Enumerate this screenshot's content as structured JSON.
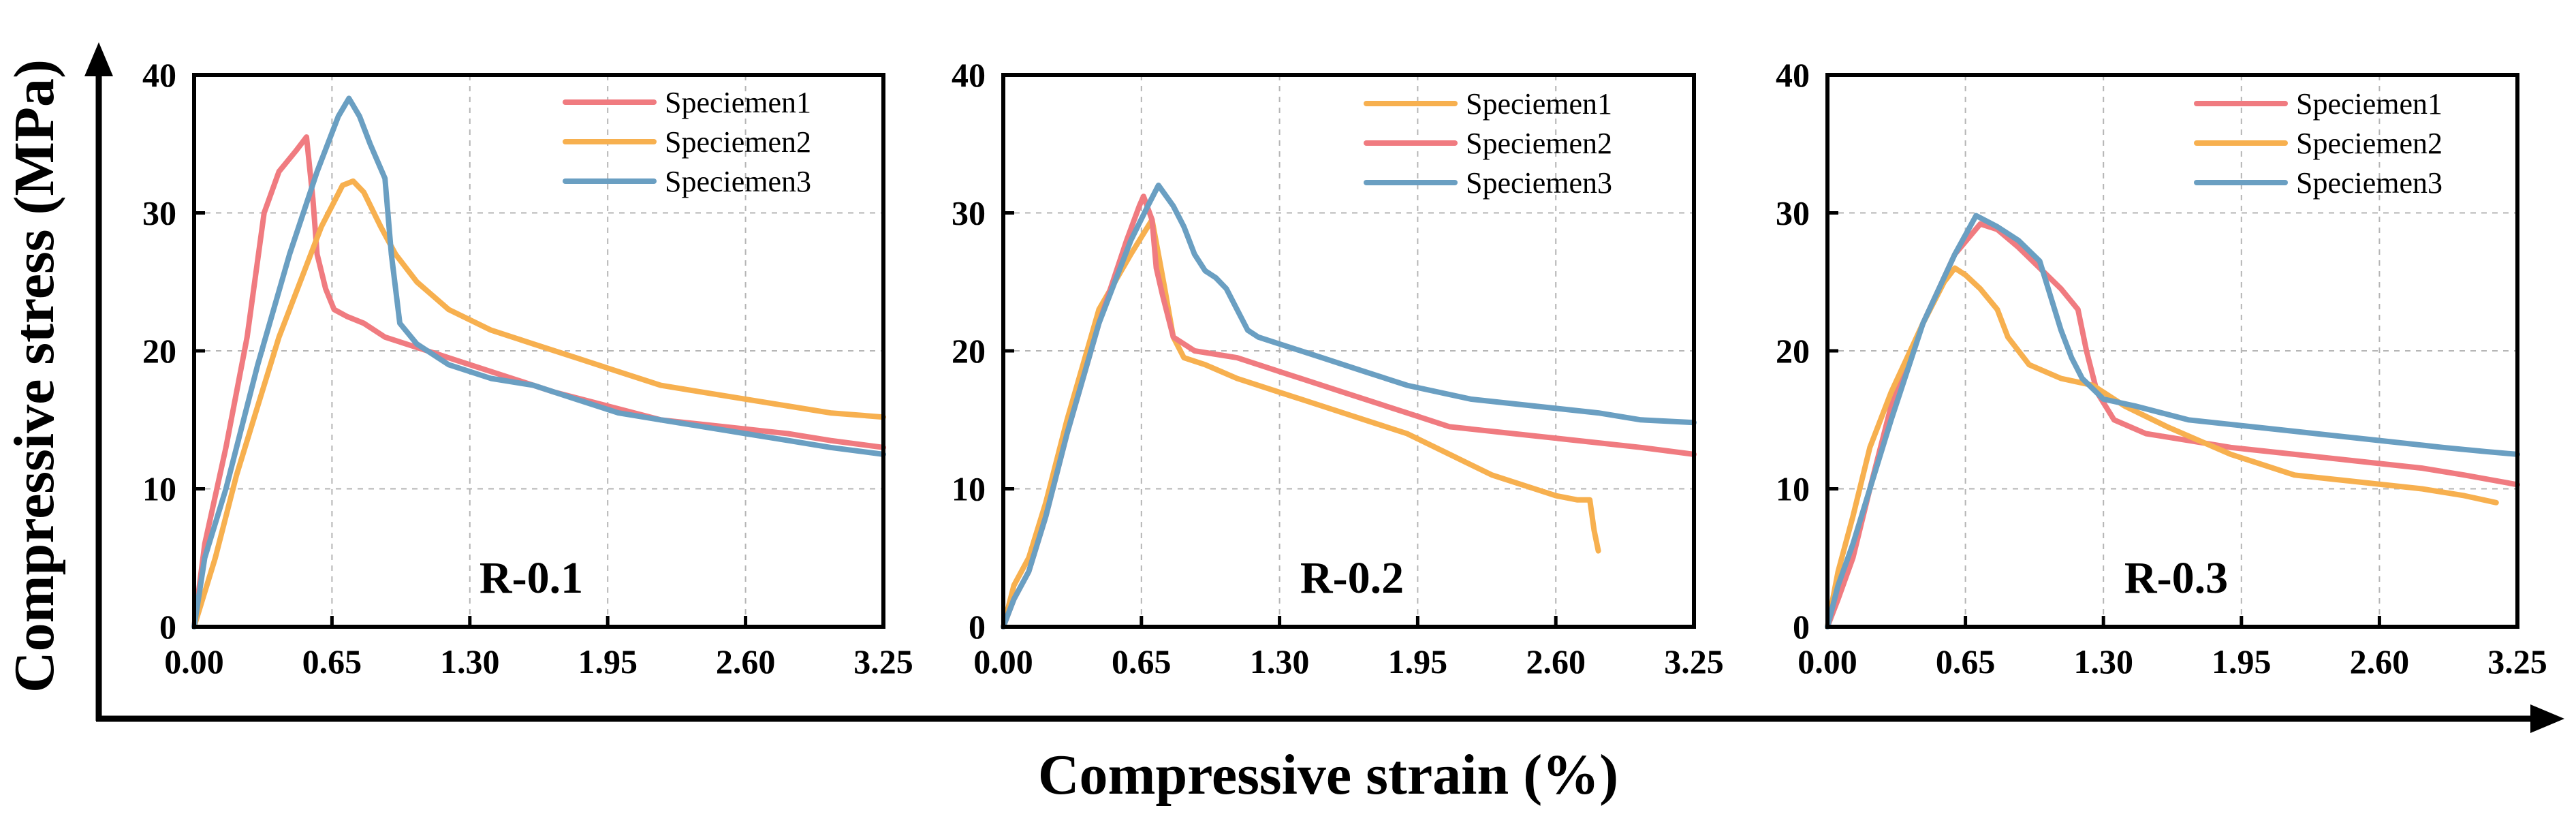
{
  "figure": {
    "xlabel": "Compressive strain (%)",
    "ylabel": "Compressive stress (MPa)",
    "colors": {
      "red": "#F07B80",
      "orange": "#F7B04F",
      "blue": "#6A9FC2"
    }
  },
  "chart_data": [
    {
      "type": "line",
      "panel_label": "R-0.1",
      "xlim": [
        0,
        3.25
      ],
      "ylim": [
        0,
        40
      ],
      "xticks": [
        "0.00",
        "0.65",
        "1.30",
        "1.95",
        "2.60",
        "3.25"
      ],
      "yticks": [
        "0",
        "10",
        "20",
        "30",
        "40"
      ],
      "grid": true,
      "legend_position": "top-right",
      "series": [
        {
          "name": "Speciemen1",
          "color": "#F07B80",
          "x": [
            0,
            0.05,
            0.15,
            0.25,
            0.33,
            0.4,
            0.48,
            0.53,
            0.56,
            0.58,
            0.62,
            0.66,
            0.72,
            0.8,
            0.9,
            1.0,
            1.1,
            1.3,
            1.5,
            1.7,
            1.95,
            2.2,
            2.5,
            2.8,
            3.0,
            3.25
          ],
          "y": [
            0,
            6,
            13,
            21,
            30,
            33,
            34.5,
            35.5,
            31,
            27,
            24.5,
            23,
            22.5,
            22,
            21,
            20.5,
            20,
            19,
            18,
            17,
            16,
            15,
            14.5,
            14,
            13.5,
            13
          ]
        },
        {
          "name": "Speciemen2",
          "color": "#F7B04F",
          "x": [
            0,
            0.1,
            0.2,
            0.3,
            0.4,
            0.5,
            0.6,
            0.7,
            0.75,
            0.8,
            0.88,
            0.95,
            1.05,
            1.2,
            1.4,
            1.6,
            1.8,
            2.0,
            2.2,
            2.4,
            2.6,
            2.8,
            3.0,
            3.25
          ],
          "y": [
            0,
            5,
            11,
            16,
            21,
            25,
            29,
            32,
            32.3,
            31.5,
            29,
            27,
            25,
            23,
            21.5,
            20.5,
            19.5,
            18.5,
            17.5,
            17,
            16.5,
            16,
            15.5,
            15.2
          ]
        },
        {
          "name": "Speciemen3",
          "color": "#6A9FC2",
          "x": [
            0,
            0.05,
            0.15,
            0.3,
            0.45,
            0.58,
            0.68,
            0.73,
            0.78,
            0.83,
            0.9,
            0.93,
            0.97,
            1.05,
            1.2,
            1.4,
            1.6,
            1.8,
            2.0,
            2.2,
            2.4,
            2.6,
            2.8,
            3.0,
            3.25
          ],
          "y": [
            0,
            5,
            10,
            19,
            27,
            33,
            37,
            38.3,
            37,
            35,
            32.5,
            27,
            22,
            20.5,
            19,
            18,
            17.5,
            16.5,
            15.5,
            15,
            14.5,
            14,
            13.5,
            13,
            12.5
          ]
        }
      ]
    },
    {
      "type": "line",
      "panel_label": "R-0.2",
      "xlim": [
        0,
        3.25
      ],
      "ylim": [
        0,
        40
      ],
      "xticks": [
        "0.00",
        "0.65",
        "1.30",
        "1.95",
        "2.60",
        "3.25"
      ],
      "yticks": [
        "0",
        "10",
        "20",
        "30",
        "40"
      ],
      "grid": true,
      "legend_position": "top-right",
      "series": [
        {
          "name": "Speciemen1",
          "color": "#F7B04F",
          "x": [
            0,
            0.05,
            0.12,
            0.2,
            0.3,
            0.45,
            0.6,
            0.7,
            0.73,
            0.76,
            0.8,
            0.85,
            0.95,
            1.1,
            1.3,
            1.5,
            1.7,
            1.9,
            2.1,
            2.3,
            2.5,
            2.6,
            2.7,
            2.76,
            2.78,
            2.8
          ],
          "y": [
            0,
            3,
            5,
            9,
            15,
            23,
            27,
            29.5,
            27,
            24.5,
            21,
            19.5,
            19,
            18,
            17,
            16,
            15,
            14,
            12.5,
            11,
            10,
            9.5,
            9.2,
            9.2,
            7,
            5.5
          ]
        },
        {
          "name": "Speciemen2",
          "color": "#F07B80",
          "x": [
            0,
            0.05,
            0.12,
            0.2,
            0.3,
            0.45,
            0.58,
            0.64,
            0.66,
            0.7,
            0.72,
            0.75,
            0.8,
            0.9,
            1.1,
            1.3,
            1.6,
            1.9,
            2.1,
            2.4,
            2.7,
            3.0,
            3.25
          ],
          "y": [
            0,
            2,
            4,
            8,
            14,
            22,
            28,
            30.5,
            31.2,
            29.5,
            26,
            24,
            21,
            20,
            19.5,
            18.5,
            17,
            15.5,
            14.5,
            14,
            13.5,
            13,
            12.5
          ]
        },
        {
          "name": "Speciemen3",
          "color": "#6A9FC2",
          "x": [
            0,
            0.05,
            0.12,
            0.2,
            0.3,
            0.45,
            0.6,
            0.68,
            0.73,
            0.8,
            0.85,
            0.9,
            0.95,
            1.0,
            1.05,
            1.1,
            1.15,
            1.2,
            1.3,
            1.5,
            1.7,
            1.9,
            2.2,
            2.5,
            2.8,
            3.0,
            3.25
          ],
          "y": [
            0,
            2,
            4,
            8,
            14,
            22,
            28,
            30.5,
            32,
            30.5,
            29,
            27,
            25.8,
            25.3,
            24.5,
            23,
            21.5,
            21,
            20.5,
            19.5,
            18.5,
            17.5,
            16.5,
            16,
            15.5,
            15,
            14.8
          ]
        }
      ]
    },
    {
      "type": "line",
      "panel_label": "R-0.3",
      "xlim": [
        0,
        3.25
      ],
      "ylim": [
        0,
        40
      ],
      "xticks": [
        "0.00",
        "0.65",
        "1.30",
        "1.95",
        "2.60",
        "3.25"
      ],
      "yticks": [
        "0",
        "10",
        "20",
        "30",
        "40"
      ],
      "grid": true,
      "legend_position": "top-right",
      "series": [
        {
          "name": "Speciemen1",
          "color": "#F07B80",
          "x": [
            0,
            0.05,
            0.12,
            0.2,
            0.3,
            0.45,
            0.6,
            0.72,
            0.8,
            0.9,
            1.0,
            1.1,
            1.18,
            1.22,
            1.27,
            1.35,
            1.5,
            1.7,
            1.9,
            2.2,
            2.5,
            2.8,
            3.0,
            3.25
          ],
          "y": [
            0,
            2,
            5,
            10,
            16,
            22,
            27,
            29.2,
            28.8,
            27.5,
            26,
            24.5,
            23,
            20,
            17,
            15,
            14,
            13.5,
            13,
            12.5,
            12,
            11.5,
            11,
            10.3
          ]
        },
        {
          "name": "Speciemen2",
          "color": "#F7B04F",
          "x": [
            0,
            0.05,
            0.12,
            0.2,
            0.3,
            0.45,
            0.55,
            0.6,
            0.65,
            0.72,
            0.8,
            0.85,
            0.95,
            1.1,
            1.25,
            1.4,
            1.6,
            1.9,
            2.2,
            2.5,
            2.8,
            3.0,
            3.15
          ],
          "y": [
            0,
            4,
            8,
            13,
            17,
            22,
            25,
            26,
            25.5,
            24.5,
            23,
            21,
            19,
            18,
            17.5,
            16,
            14.5,
            12.5,
            11,
            10.5,
            10,
            9.5,
            9
          ]
        },
        {
          "name": "Speciemen3",
          "color": "#6A9FC2",
          "x": [
            0,
            0.05,
            0.12,
            0.2,
            0.3,
            0.45,
            0.6,
            0.7,
            0.8,
            0.9,
            1.0,
            1.05,
            1.1,
            1.15,
            1.2,
            1.3,
            1.45,
            1.7,
            2.0,
            2.3,
            2.6,
            2.9,
            3.1,
            3.25
          ],
          "y": [
            0,
            3,
            6,
            10,
            15,
            22,
            27,
            29.8,
            29,
            28,
            26.5,
            24,
            21.5,
            19.5,
            18,
            16.5,
            16,
            15,
            14.5,
            14,
            13.5,
            13,
            12.7,
            12.5
          ]
        }
      ]
    }
  ]
}
